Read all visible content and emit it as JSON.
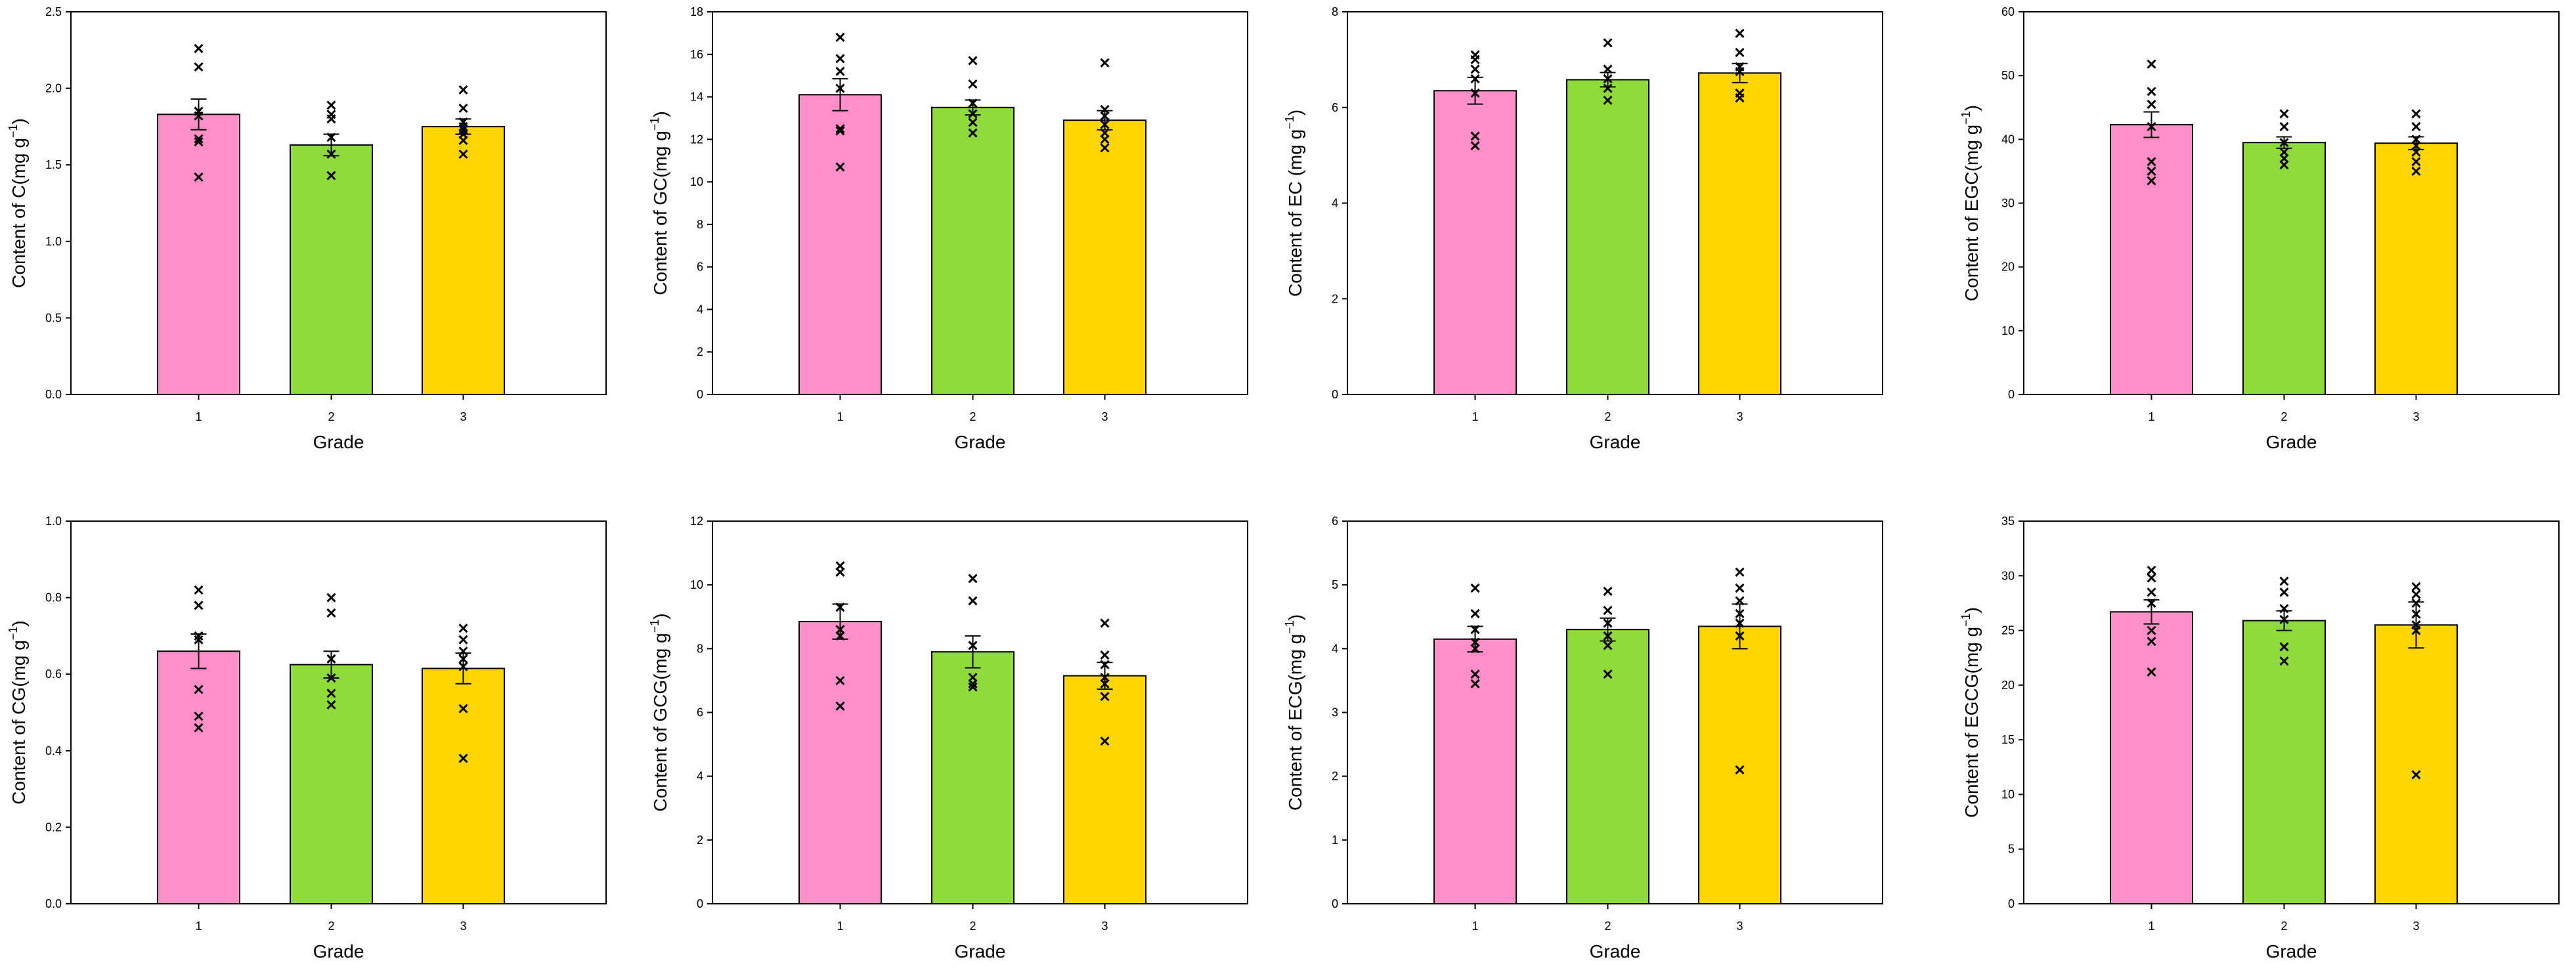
{
  "chart_data": [
    {
      "type": "bar",
      "categories": [
        "1",
        "2",
        "3"
      ],
      "values": [
        1.83,
        1.63,
        1.75
      ],
      "errors": [
        0.1,
        0.07,
        0.05
      ],
      "points": [
        [
          2.26,
          2.14,
          1.85,
          1.82,
          1.67,
          1.65,
          1.42
        ],
        [
          1.89,
          1.83,
          1.8,
          1.68,
          1.57,
          1.43
        ],
        [
          1.99,
          1.87,
          1.78,
          1.75,
          1.73,
          1.7,
          1.66,
          1.57
        ]
      ],
      "ylabel_prefix": "Content of C(",
      "ylabel_unit": "mg g",
      "ylabel_exp": "−1",
      "ylabel_suffix": ")",
      "xlabel": "Grade",
      "ylim": [
        0,
        2.5
      ],
      "yticks": [
        "0.0",
        "0.5",
        "1.0",
        "1.5",
        "2.0",
        "2.5"
      ],
      "colors": [
        "#ff8fc8",
        "#8fdb3c",
        "#ffd500"
      ],
      "grid": false
    },
    {
      "type": "bar",
      "categories": [
        "1",
        "2",
        "3"
      ],
      "values": [
        14.1,
        13.5,
        12.9
      ],
      "errors": [
        0.75,
        0.35,
        0.45
      ],
      "points": [
        [
          16.8,
          15.8,
          15.2,
          14.4,
          12.5,
          12.4,
          10.7
        ],
        [
          15.7,
          14.6,
          13.7,
          13.2,
          12.8,
          12.3
        ],
        [
          15.6,
          13.4,
          13.1,
          12.7,
          12.3,
          12.0,
          11.6
        ]
      ],
      "ylabel_prefix": "Content of GC(",
      "ylabel_unit": "mg g",
      "ylabel_exp": "−1",
      "ylabel_suffix": ")",
      "xlabel": "Grade",
      "ylim": [
        0,
        18
      ],
      "yticks": [
        "0",
        "2",
        "4",
        "6",
        "8",
        "10",
        "12",
        "14",
        "16",
        "18"
      ],
      "colors": [
        "#ff8fc8",
        "#8fdb3c",
        "#ffd500"
      ],
      "grid": false
    },
    {
      "type": "bar",
      "categories": [
        "1",
        "2",
        "3"
      ],
      "values": [
        6.35,
        6.58,
        6.72
      ],
      "errors": [
        0.28,
        0.15,
        0.2
      ],
      "points": [
        [
          7.1,
          7.0,
          6.8,
          6.6,
          6.3,
          5.4,
          5.2
        ],
        [
          7.35,
          6.8,
          6.6,
          6.4,
          6.15
        ],
        [
          7.55,
          7.15,
          6.85,
          6.75,
          6.3,
          6.2
        ]
      ],
      "ylabel_prefix": "Content of EC (",
      "ylabel_unit": "mg g",
      "ylabel_exp": "−1",
      "ylabel_suffix": ")",
      "xlabel": "Grade",
      "ylim": [
        0,
        8
      ],
      "yticks": [
        "0",
        "2",
        "4",
        "6",
        "8"
      ],
      "colors": [
        "#ff8fc8",
        "#8fdb3c",
        "#ffd500"
      ],
      "grid": false
    },
    {
      "type": "bar",
      "categories": [
        "1",
        "2",
        "3"
      ],
      "values": [
        42.3,
        39.5,
        39.4
      ],
      "errors": [
        2.0,
        0.9,
        1.0
      ],
      "points": [
        [
          51.8,
          47.5,
          45.5,
          42.0,
          36.5,
          35.0,
          33.5
        ],
        [
          44.0,
          42.0,
          39.5,
          38.0,
          37.0,
          36.0
        ],
        [
          44.0,
          42.0,
          40.0,
          39.0,
          38.0,
          36.5,
          35.0
        ]
      ],
      "ylabel_prefix": "Content of EGC(",
      "ylabel_unit": "mg g",
      "ylabel_exp": "−1",
      "ylabel_suffix": ")",
      "xlabel": "Grade",
      "ylim": [
        0,
        60
      ],
      "yticks": [
        "0",
        "10",
        "20",
        "30",
        "40",
        "50",
        "60"
      ],
      "colors": [
        "#ff8fc8",
        "#8fdb3c",
        "#ffd500"
      ],
      "grid": false
    },
    {
      "type": "bar",
      "categories": [
        "1",
        "2",
        "3"
      ],
      "values": [
        0.66,
        0.625,
        0.615
      ],
      "errors": [
        0.045,
        0.035,
        0.04
      ],
      "points": [
        [
          0.82,
          0.78,
          0.7,
          0.69,
          0.56,
          0.49,
          0.46
        ],
        [
          0.8,
          0.76,
          0.64,
          0.59,
          0.55,
          0.52
        ],
        [
          0.72,
          0.69,
          0.66,
          0.64,
          0.62,
          0.51,
          0.38
        ]
      ],
      "ylabel_prefix": "Content of CG(",
      "ylabel_unit": "mg g",
      "ylabel_exp": "−1",
      "ylabel_suffix": ")",
      "xlabel": "Grade",
      "ylim": [
        0,
        1.0
      ],
      "yticks": [
        "0.0",
        "0.2",
        "0.4",
        "0.6",
        "0.8",
        "1.0"
      ],
      "colors": [
        "#ff8fc8",
        "#8fdb3c",
        "#ffd500"
      ],
      "grid": false
    },
    {
      "type": "bar",
      "categories": [
        "1",
        "2",
        "3"
      ],
      "values": [
        8.85,
        7.9,
        7.15
      ],
      "errors": [
        0.55,
        0.5,
        0.42
      ],
      "points": [
        [
          10.6,
          10.4,
          9.3,
          8.6,
          8.4,
          7.0,
          6.2
        ],
        [
          10.2,
          9.5,
          8.1,
          7.1,
          6.9,
          6.8
        ],
        [
          8.8,
          7.8,
          7.5,
          7.1,
          6.9,
          6.5,
          5.1
        ]
      ],
      "ylabel_prefix": "Content of GCG(",
      "ylabel_unit": "mg g",
      "ylabel_exp": "−1",
      "ylabel_suffix": ")",
      "xlabel": "Grade",
      "ylim": [
        0,
        12
      ],
      "yticks": [
        "0",
        "2",
        "4",
        "6",
        "8",
        "10",
        "12"
      ],
      "colors": [
        "#ff8fc8",
        "#8fdb3c",
        "#ffd500"
      ],
      "grid": false
    },
    {
      "type": "bar",
      "categories": [
        "1",
        "2",
        "3"
      ],
      "values": [
        4.15,
        4.3,
        4.35
      ],
      "errors": [
        0.2,
        0.18,
        0.35
      ],
      "points": [
        [
          4.95,
          4.55,
          4.3,
          4.1,
          4.0,
          3.6,
          3.45
        ],
        [
          4.9,
          4.6,
          4.4,
          4.2,
          4.05,
          3.6
        ],
        [
          5.2,
          4.95,
          4.75,
          4.55,
          4.4,
          4.2,
          2.1
        ]
      ],
      "ylabel_prefix": "Content of ECG(",
      "ylabel_unit": "mg g",
      "ylabel_exp": "−1",
      "ylabel_suffix": ")",
      "xlabel": "Grade",
      "ylim": [
        0,
        6
      ],
      "yticks": [
        "0",
        "1",
        "2",
        "3",
        "4",
        "5",
        "6"
      ],
      "colors": [
        "#ff8fc8",
        "#8fdb3c",
        "#ffd500"
      ],
      "grid": false
    },
    {
      "type": "bar",
      "categories": [
        "1",
        "2",
        "3"
      ],
      "values": [
        26.7,
        25.9,
        25.5
      ],
      "errors": [
        1.1,
        0.9,
        2.1
      ],
      "points": [
        [
          30.5,
          29.8,
          28.5,
          27.5,
          25.0,
          24.0,
          21.2
        ],
        [
          29.5,
          28.5,
          27.0,
          26.0,
          23.5,
          22.2
        ],
        [
          29.0,
          28.3,
          27.5,
          26.5,
          25.5,
          25.0,
          11.8
        ]
      ],
      "ylabel_prefix": "Content of EGCG(",
      "ylabel_unit": "mg g",
      "ylabel_exp": "−1",
      "ylabel_suffix": ")",
      "xlabel": "Grade",
      "ylim": [
        0,
        35
      ],
      "yticks": [
        "0",
        "5",
        "10",
        "15",
        "20",
        "25",
        "30",
        "35"
      ],
      "colors": [
        "#ff8fc8",
        "#8fdb3c",
        "#ffd500"
      ],
      "grid": false
    }
  ]
}
